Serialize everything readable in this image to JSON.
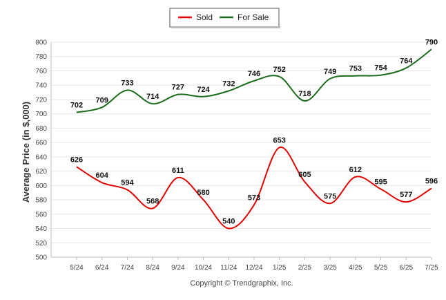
{
  "chart_data": {
    "type": "line",
    "categories": [
      "5/24",
      "6/24",
      "7/24",
      "8/24",
      "9/24",
      "10/24",
      "11/24",
      "12/24",
      "1/25",
      "2/25",
      "3/25",
      "4/25",
      "5/25",
      "6/25",
      "7/25"
    ],
    "series": [
      {
        "name": "Sold",
        "color": "#e00000",
        "values": [
          626,
          604,
          594,
          568,
          611,
          580,
          540,
          573,
          653,
          605,
          575,
          612,
          595,
          577,
          596
        ]
      },
      {
        "name": "For Sale",
        "color": "#1a6b1a",
        "values": [
          702,
          709,
          733,
          714,
          727,
          724,
          732,
          746,
          752,
          718,
          749,
          753,
          754,
          764,
          790
        ]
      }
    ],
    "ylabel": "Average Price (in $,000)",
    "xlabel": "",
    "ylim": [
      500,
      800
    ],
    "yticks": [
      500,
      520,
      540,
      560,
      580,
      600,
      620,
      640,
      660,
      680,
      700,
      720,
      740,
      760,
      780,
      800
    ],
    "grid": true,
    "legend_position": "top-center",
    "footer": "Copyright © Trendgraphix, Inc."
  }
}
